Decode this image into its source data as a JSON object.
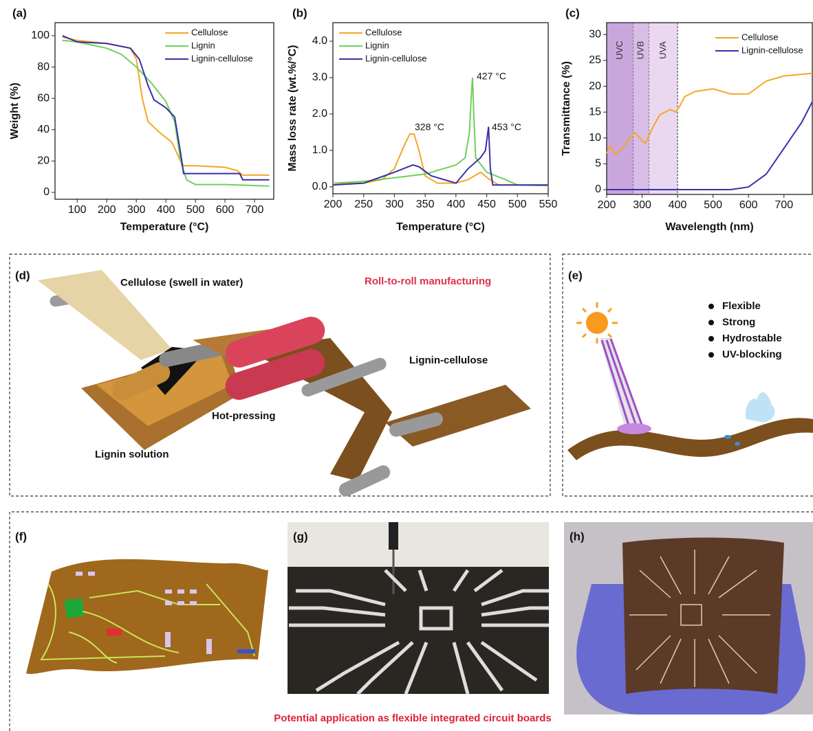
{
  "chart_data": [
    {
      "type": "line",
      "panel": "(a)",
      "xlabel": "Temperature (°C)",
      "ylabel": "Weight (%)",
      "xlim": [
        25,
        765
      ],
      "xticks": [
        100,
        200,
        300,
        400,
        500,
        600,
        700
      ],
      "ylim": [
        -4.4,
        108.3
      ],
      "yticks": [
        0,
        20,
        40,
        60,
        80,
        100
      ],
      "series": [
        {
          "name": "Cellulose",
          "color": "#f5a623",
          "x": [
            50,
            100,
            200,
            280,
            300,
            320,
            340,
            380,
            420,
            450,
            460,
            500,
            600,
            640,
            660,
            750
          ],
          "values": [
            99,
            97,
            95,
            92,
            85,
            60,
            45,
            38,
            32,
            20,
            17,
            17,
            16,
            14,
            11,
            11
          ]
        },
        {
          "name": "Lignin",
          "color": "#6fd05a",
          "x": [
            50,
            100,
            200,
            250,
            300,
            350,
            400,
            430,
            450,
            470,
            500,
            600,
            750
          ],
          "values": [
            97,
            96,
            92,
            88,
            80,
            70,
            58,
            45,
            20,
            8,
            5,
            5,
            4
          ]
        },
        {
          "name": "Lignin-cellulose",
          "color": "#3a2fa8",
          "x": [
            50,
            100,
            200,
            280,
            310,
            340,
            360,
            400,
            430,
            450,
            460,
            500,
            650,
            660,
            750
          ],
          "values": [
            100,
            96,
            95,
            92,
            85,
            68,
            59,
            54,
            48,
            25,
            12,
            12,
            12,
            8,
            8
          ]
        }
      ]
    },
    {
      "type": "line",
      "panel": "(b)",
      "xlabel": "Temperature (°C)",
      "ylabel": "Mass loss rate (wt.%/°C)",
      "xlim": [
        200,
        550
      ],
      "xticks": [
        200,
        250,
        300,
        350,
        400,
        450,
        500,
        550
      ],
      "ylim": [
        -0.19,
        4.51
      ],
      "yticks": [
        {
          "value": 0,
          "label": "0.0"
        },
        {
          "value": 1,
          "label": "1.0"
        },
        {
          "value": 2,
          "label": "2.0"
        },
        {
          "value": 3,
          "label": "3.0"
        },
        {
          "value": 4,
          "label": "4.0"
        }
      ],
      "annotations": [
        "328 °C",
        "427 °C",
        "453 °C"
      ],
      "series": [
        {
          "name": "Cellulose",
          "color": "#f5a623",
          "x": [
            200,
            250,
            280,
            300,
            315,
            325,
            332,
            340,
            350,
            370,
            400,
            420,
            440,
            455,
            470,
            550
          ],
          "values": [
            0.1,
            0.1,
            0.2,
            0.5,
            1.1,
            1.45,
            1.45,
            1.0,
            0.3,
            0.1,
            0.1,
            0.2,
            0.4,
            0.2,
            0.05,
            0.05
          ]
        },
        {
          "name": "Lignin",
          "color": "#6fd05a",
          "x": [
            200,
            250,
            300,
            350,
            400,
            415,
            422,
            425,
            427,
            429,
            432,
            450,
            480,
            500,
            550
          ],
          "values": [
            0.1,
            0.15,
            0.25,
            0.35,
            0.6,
            0.8,
            1.5,
            2.5,
            3.0,
            2.0,
            0.8,
            0.4,
            0.2,
            0.05,
            0.03
          ]
        },
        {
          "name": "Lignin-cellulose",
          "color": "#3a2fa8",
          "x": [
            200,
            250,
            300,
            330,
            340,
            360,
            400,
            420,
            440,
            448,
            453,
            456,
            460,
            550
          ],
          "values": [
            0.05,
            0.1,
            0.4,
            0.6,
            0.55,
            0.3,
            0.1,
            0.5,
            0.8,
            1.0,
            1.65,
            0.5,
            0.05,
            0.05
          ]
        }
      ]
    },
    {
      "type": "line",
      "panel": "(c)",
      "xlabel": "Wavelength (nm)",
      "ylabel": "Transmittance (%)",
      "xlim": [
        200,
        780
      ],
      "xticks": [
        200,
        300,
        400,
        500,
        600,
        700
      ],
      "ylim": [
        -0.93,
        32.3
      ],
      "yticks": [
        0,
        5,
        10,
        15,
        20,
        25,
        30
      ],
      "bands": [
        {
          "label": "UVC",
          "from": 200,
          "to": 275,
          "color": "#c9a6dc"
        },
        {
          "label": "UVB",
          "from": 275,
          "to": 320,
          "color": "#d8bde6"
        },
        {
          "label": "UVA",
          "from": 320,
          "to": 400,
          "color": "#ead8f1"
        }
      ],
      "series": [
        {
          "name": "Cellulose",
          "color": "#f5a623",
          "x": [
            200,
            210,
            225,
            250,
            270,
            280,
            300,
            310,
            330,
            350,
            380,
            395,
            405,
            420,
            450,
            500,
            550,
            600,
            620,
            650,
            700,
            780
          ],
          "values": [
            7,
            8.5,
            6.8,
            8.5,
            10.5,
            11,
            9.5,
            9,
            12,
            14.5,
            15.5,
            15,
            16,
            18,
            19,
            19.5,
            18.5,
            18.5,
            19.5,
            21,
            22,
            22.5
          ]
        },
        {
          "name": "Lignin-cellulose",
          "color": "#3a2fa8",
          "x": [
            200,
            550,
            600,
            650,
            700,
            750,
            780
          ],
          "values": [
            0,
            0,
            0.5,
            3,
            8,
            13,
            17
          ]
        }
      ]
    }
  ],
  "panels": {
    "d": {
      "label": "(d)",
      "cellulose": "Cellulose (swell in water)",
      "process": "Roll-to-roll manufacturing",
      "product": "Lignin-cellulose",
      "pressing": "Hot-pressing",
      "solution": "Lignin solution"
    },
    "e": {
      "label": "(e)",
      "features": [
        "Flexible",
        "Strong",
        "Hydrostable",
        "UV-blocking"
      ]
    },
    "f": {
      "label": "(f)"
    },
    "g": {
      "label": "(g)"
    },
    "h": {
      "label": "(h)"
    },
    "caption": "Potential application as flexible integrated circuit boards"
  }
}
